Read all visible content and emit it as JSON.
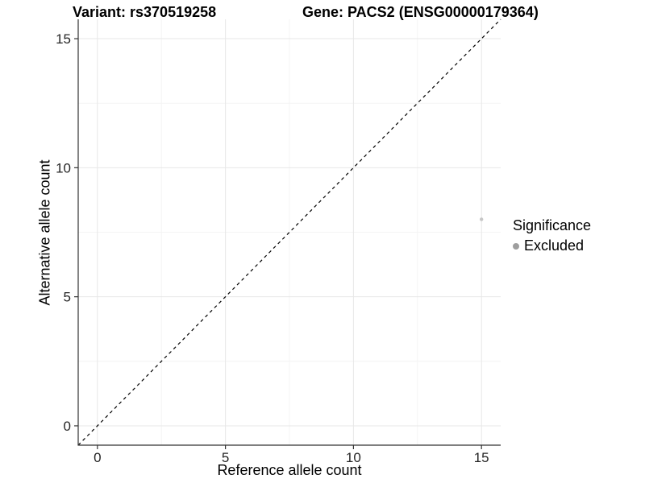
{
  "chart_data": {
    "type": "scatter",
    "title_left": "Variant: rs370519258",
    "title_right": "Gene: PACS2 (ENSG00000179364)",
    "xlabel": "Reference allele count",
    "ylabel": "Alternative allele count",
    "xlim": [
      -0.75,
      15.75
    ],
    "ylim": [
      -0.75,
      15.75
    ],
    "xticks": [
      0,
      5,
      10,
      15
    ],
    "yticks": [
      0,
      5,
      10,
      15
    ],
    "xticks_minor": [
      2.5,
      7.5,
      12.5
    ],
    "yticks_minor": [
      2.5,
      7.5,
      12.5
    ],
    "grid": "major and minor, light gray, white background",
    "points": [
      {
        "x": 15,
        "y": 8,
        "series": "Excluded"
      }
    ],
    "identity_line": {
      "style": "dashed",
      "from": -0.75,
      "to": 15.75,
      "color": "#000000"
    },
    "legend": {
      "position": "right",
      "title": "Significance",
      "items": [
        {
          "label": "Excluded",
          "color": "#9e9e9e"
        }
      ]
    },
    "colors": {
      "point": "#c6c6c6",
      "grid_major": "#e7e7e7",
      "grid_minor": "#f4f4f4",
      "axis": "#333333",
      "tick_label": "#262626"
    }
  }
}
